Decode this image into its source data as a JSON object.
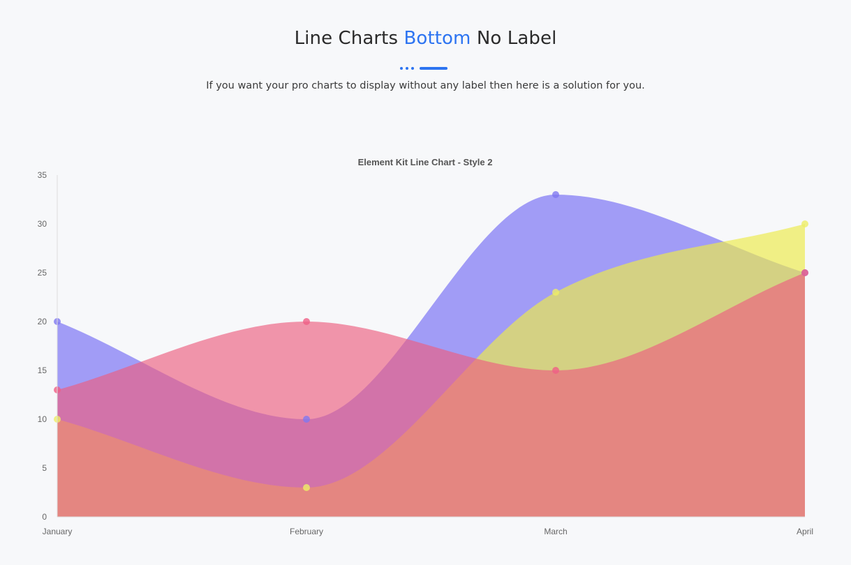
{
  "header": {
    "title_part1": "Line Charts ",
    "title_accent": "Bottom",
    "title_part2": " No Label",
    "subtitle": "If you want your pro charts to display without any label then here is a solution for you."
  },
  "colors": {
    "accent": "#2d74f1",
    "background": "#f7f8fa"
  },
  "chart_data": {
    "type": "area",
    "title": "Element Kit Line Chart - Style 2",
    "xlabel": "",
    "ylabel": "",
    "categories": [
      "January",
      "February",
      "March",
      "April"
    ],
    "ylim": [
      0,
      35
    ],
    "yticks": [
      0,
      5,
      10,
      15,
      20,
      25,
      30,
      35
    ],
    "grid": false,
    "legend": "none",
    "smooth": true,
    "series": [
      {
        "values": [
          20,
          10,
          33,
          25
        ],
        "fill": "rgba(132,126,244,0.75)",
        "point": "#7f78f0"
      },
      {
        "values": [
          10,
          3,
          23,
          30
        ],
        "fill": "rgba(236,235,76,0.68)",
        "point": "#eeee66"
      },
      {
        "values": [
          13,
          20,
          15,
          25
        ],
        "fill": "rgba(236,94,128,0.65)",
        "point": "#ef5f86"
      }
    ]
  }
}
